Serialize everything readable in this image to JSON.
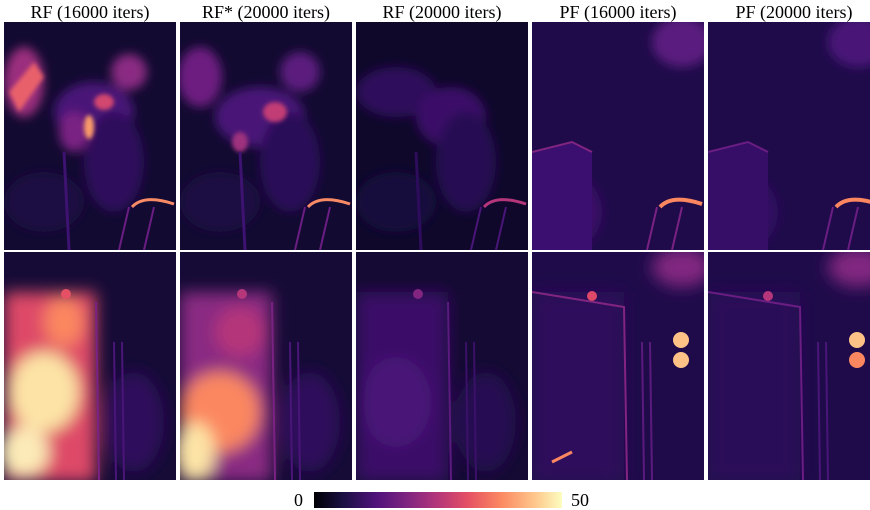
{
  "headers": [
    "RF (16000 iters)",
    "RF* (20000 iters)",
    "RF (20000 iters)",
    "PF (16000 iters)",
    "PF (20000 iters)"
  ],
  "colorbar": {
    "min_label": "0",
    "max_label": "50",
    "colormap": "magma"
  },
  "colors": {
    "dark": "#0d0829",
    "mid": "#3b0f70",
    "bright": "#de4968",
    "hot": "#fde4a6"
  }
}
